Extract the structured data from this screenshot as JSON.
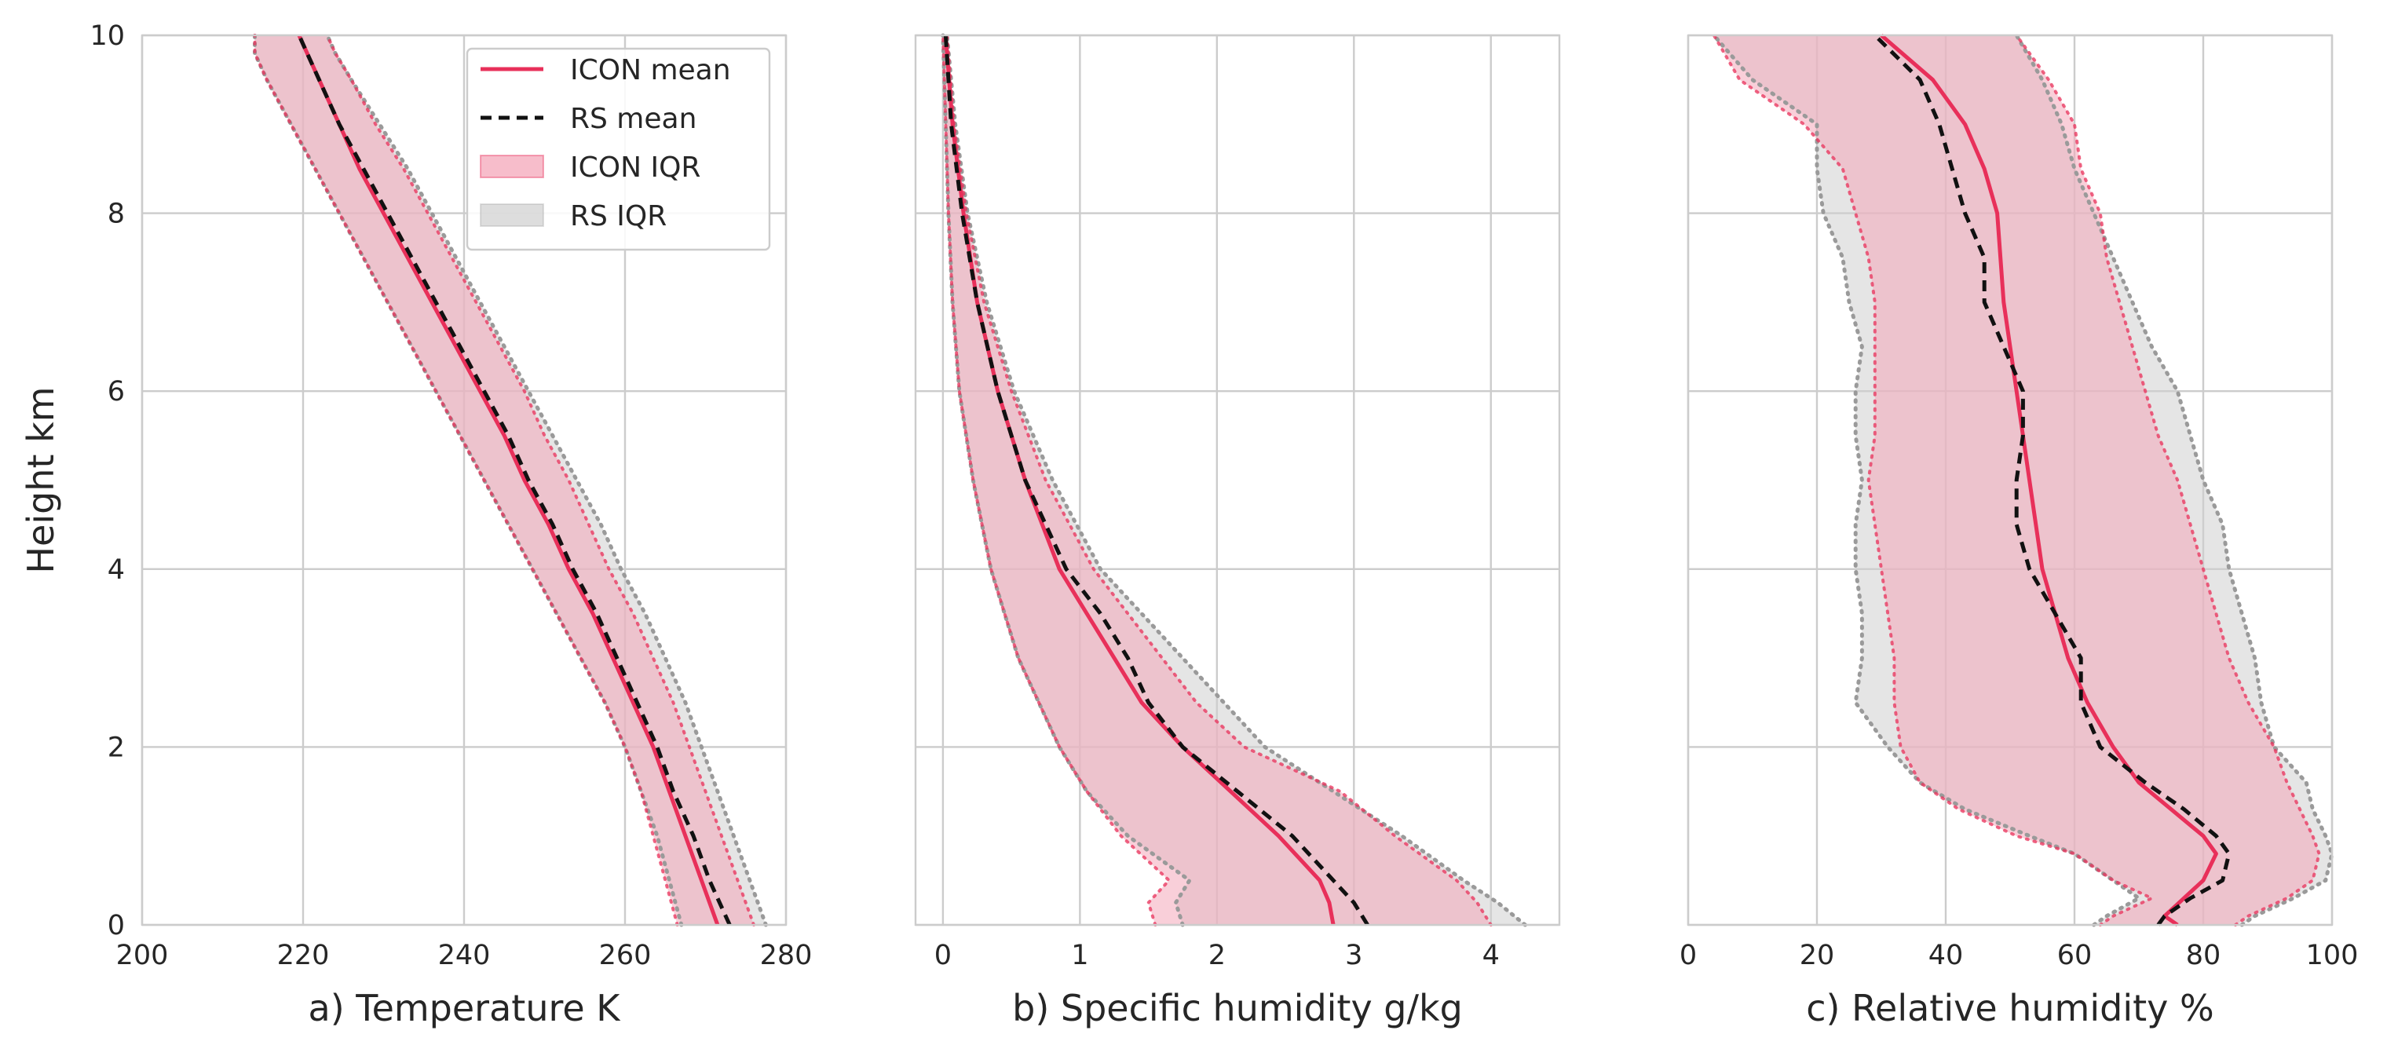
{
  "colors": {
    "icon_line": "#e8305a",
    "icon_fill": "#f4a7b9",
    "rs_line": "#111111",
    "rs_fill": "#cfcfcf",
    "rs_dots": "#9a9a9a",
    "overlap_fill": "#cdb0b8",
    "grid": "#cccccc",
    "frame": "#cccccc"
  },
  "legend": {
    "items": [
      {
        "label": "ICON mean",
        "kind": "icon-line"
      },
      {
        "label": "RS mean",
        "kind": "rs-line"
      },
      {
        "label": "ICON IQR",
        "kind": "icon-fill"
      },
      {
        "label": "RS IQR",
        "kind": "rs-fill"
      }
    ],
    "placement": "top-right of panel a"
  },
  "chart_data": [
    {
      "type": "line",
      "xlabel": "a) Temperature K",
      "ylabel": "Height km",
      "xlim": [
        200,
        280
      ],
      "ylim": [
        0,
        10
      ],
      "xticks": [
        "200",
        "220",
        "240",
        "260",
        "280"
      ],
      "yticks": [
        "0",
        "2",
        "4",
        "6",
        "8",
        "10"
      ],
      "grid": true,
      "y": [
        0,
        0.5,
        1,
        1.5,
        2,
        2.5,
        3,
        3.5,
        4,
        4.5,
        5,
        5.5,
        6,
        6.5,
        7,
        7.5,
        8,
        8.5,
        9,
        9.5,
        9.8,
        10
      ],
      "series": [
        {
          "name": "ICON mean",
          "x": [
            271.5,
            269.5,
            267.5,
            265.5,
            263.5,
            261.0,
            258.5,
            256.0,
            253.0,
            250.5,
            247.5,
            245.0,
            242.0,
            239.0,
            236.0,
            233.0,
            230.0,
            227.0,
            224.5,
            222.0,
            220.5,
            219.5
          ]
        },
        {
          "name": "RS mean",
          "x": [
            273.0,
            270.5,
            268.5,
            266.0,
            264.0,
            261.5,
            259.0,
            256.5,
            253.5,
            251.0,
            248.0,
            245.5,
            242.5,
            239.5,
            236.5,
            233.5,
            230.5,
            227.5,
            224.5,
            222.0,
            220.5,
            219.5
          ]
        },
        {
          "name": "ICON IQR",
          "low": [
            266.5,
            265.0,
            263.5,
            262.0,
            260.0,
            257.5,
            254.5,
            251.5,
            248.5,
            245.5,
            242.5,
            239.5,
            236.5,
            233.5,
            230.5,
            227.5,
            224.5,
            221.5,
            218.5,
            215.5,
            214.0,
            214.0
          ],
          "high": [
            276.0,
            274.0,
            272.0,
            270.0,
            268.0,
            266.0,
            263.5,
            261.0,
            258.0,
            255.5,
            253.0,
            250.0,
            247.5,
            244.5,
            241.5,
            238.5,
            235.5,
            232.5,
            229.0,
            226.0,
            224.0,
            223.0
          ]
        },
        {
          "name": "RS IQR",
          "low": [
            267.0,
            265.5,
            264.0,
            262.0,
            260.0,
            257.5,
            254.5,
            251.5,
            248.5,
            245.5,
            242.5,
            239.5,
            236.5,
            233.5,
            230.5,
            227.5,
            224.5,
            221.5,
            218.5,
            215.5,
            214.0,
            214.0
          ],
          "high": [
            277.5,
            275.5,
            273.5,
            271.5,
            269.5,
            267.5,
            265.0,
            262.5,
            259.5,
            257.0,
            254.0,
            251.0,
            248.0,
            245.0,
            242.0,
            239.0,
            236.0,
            233.0,
            229.5,
            226.0,
            224.0,
            223.0
          ]
        }
      ]
    },
    {
      "type": "line",
      "xlabel": "b) Specific humidity g/kg",
      "ylabel": "",
      "xlim": [
        -0.2,
        4.5
      ],
      "ylim": [
        0,
        10
      ],
      "xticks": [
        "0",
        "1",
        "2",
        "3",
        "4"
      ],
      "grid": true,
      "y": [
        0,
        0.25,
        0.5,
        1,
        1.5,
        2,
        2.5,
        3,
        3.5,
        4,
        5,
        6,
        7,
        8,
        9,
        10
      ],
      "series": [
        {
          "name": "ICON mean",
          "x": [
            2.85,
            2.82,
            2.75,
            2.45,
            2.1,
            1.75,
            1.45,
            1.25,
            1.05,
            0.85,
            0.6,
            0.4,
            0.25,
            0.15,
            0.07,
            0.02
          ]
        },
        {
          "name": "RS mean",
          "x": [
            3.1,
            3.0,
            2.85,
            2.55,
            2.15,
            1.75,
            1.5,
            1.35,
            1.15,
            0.9,
            0.6,
            0.4,
            0.25,
            0.14,
            0.06,
            0.02
          ]
        },
        {
          "name": "ICON IQR",
          "low": [
            1.55,
            1.5,
            1.65,
            1.3,
            1.05,
            0.85,
            0.7,
            0.55,
            0.45,
            0.35,
            0.22,
            0.12,
            0.07,
            0.04,
            0.02,
            0.0
          ],
          "high": [
            4.0,
            3.9,
            3.75,
            3.3,
            2.9,
            2.2,
            1.85,
            1.6,
            1.35,
            1.1,
            0.75,
            0.5,
            0.3,
            0.17,
            0.08,
            0.03
          ]
        },
        {
          "name": "RS IQR",
          "low": [
            1.75,
            1.7,
            1.8,
            1.35,
            1.05,
            0.85,
            0.7,
            0.55,
            0.45,
            0.35,
            0.22,
            0.12,
            0.07,
            0.04,
            0.02,
            0.0
          ],
          "high": [
            4.25,
            4.05,
            3.8,
            3.35,
            2.85,
            2.35,
            2.05,
            1.75,
            1.45,
            1.15,
            0.8,
            0.52,
            0.32,
            0.18,
            0.09,
            0.03
          ]
        }
      ]
    },
    {
      "type": "line",
      "xlabel": "c) Relative humidity %",
      "ylabel": "",
      "xlim": [
        0,
        100
      ],
      "ylim": [
        0,
        10
      ],
      "xticks": [
        "0",
        "20",
        "40",
        "60",
        "80",
        "100"
      ],
      "grid": true,
      "y": [
        0,
        0.1,
        0.3,
        0.5,
        0.8,
        1,
        1.3,
        1.6,
        2,
        2.5,
        3,
        3.5,
        4,
        4.5,
        5,
        5.5,
        6,
        6.5,
        7,
        7.5,
        8,
        8.5,
        9,
        9.5,
        10
      ],
      "series": [
        {
          "name": "ICON mean",
          "x": [
            76,
            74,
            77,
            80,
            82,
            80,
            75,
            70,
            66,
            62,
            59,
            57,
            55,
            54,
            53,
            52,
            51,
            50,
            49,
            48.5,
            48,
            46,
            43,
            38,
            30
          ]
        },
        {
          "name": "RS mean",
          "x": [
            73,
            74,
            78,
            83,
            84,
            82,
            77,
            71,
            64,
            61,
            61,
            57,
            53,
            51,
            51,
            52,
            52,
            49,
            46,
            46,
            43,
            41,
            39,
            36,
            29
          ]
        },
        {
          "name": "ICON IQR",
          "low": [
            64,
            66,
            72,
            66,
            60,
            51,
            42,
            36,
            33,
            32,
            32,
            31,
            30,
            29,
            28,
            29,
            29,
            29,
            29,
            28,
            26,
            24,
            18,
            8,
            4
          ],
          "high": [
            85,
            87,
            93,
            97,
            98,
            97,
            95,
            93,
            91,
            87,
            84,
            82,
            80,
            78,
            76,
            73,
            71,
            69,
            67,
            65,
            64,
            61,
            60,
            56,
            51
          ]
        },
        {
          "name": "RS IQR",
          "low": [
            63,
            65,
            70,
            66,
            60,
            53,
            43,
            36,
            31,
            26,
            27,
            27,
            26,
            26,
            27,
            26,
            26,
            27,
            25,
            24,
            21,
            20,
            20,
            10,
            4
          ],
          "high": [
            86,
            88,
            94,
            99,
            100,
            99,
            97,
            96,
            91,
            89,
            88,
            86,
            84,
            83,
            80,
            78,
            76,
            72,
            69,
            66,
            63,
            60,
            58,
            55,
            51
          ]
        }
      ]
    }
  ]
}
